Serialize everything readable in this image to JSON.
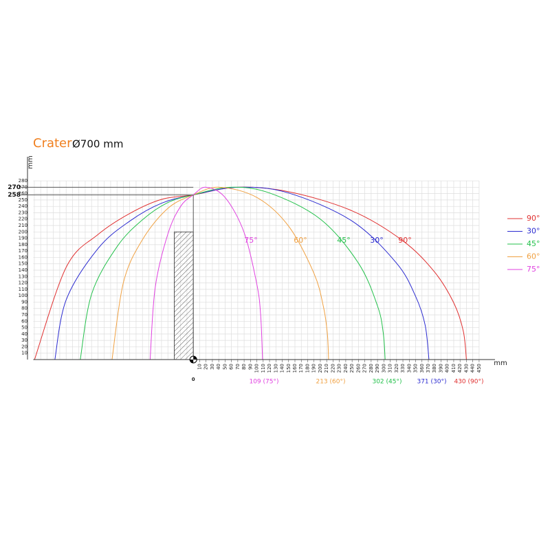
{
  "chart_data": {
    "type": "line",
    "title": "Crater",
    "subtitle": "Ø700 mm",
    "x_label": "mm",
    "y_label": "mm",
    "origin_label": "0",
    "xlim": [
      -252,
      475
    ],
    "ylim": [
      0,
      285
    ],
    "xticks": [
      10,
      20,
      30,
      40,
      50,
      60,
      70,
      80,
      90,
      100,
      110,
      120,
      130,
      140,
      150,
      160,
      170,
      180,
      190,
      200,
      210,
      220,
      230,
      240,
      250,
      260,
      270,
      280,
      290,
      300,
      310,
      320,
      330,
      340,
      350,
      360,
      370,
      380,
      390,
      400,
      410,
      420,
      430,
      440,
      450
    ],
    "yticks": [
      10,
      20,
      30,
      40,
      50,
      60,
      70,
      80,
      90,
      100,
      110,
      120,
      130,
      140,
      150,
      160,
      170,
      180,
      190,
      200,
      210,
      220,
      230,
      240,
      250,
      260,
      270,
      280
    ],
    "ref_lines": [
      270,
      258
    ],
    "obstacle": {
      "x": [
        -30,
        0
      ],
      "height": 200
    },
    "grid": true,
    "legend": "right",
    "series": [
      {
        "name": "90°",
        "color": "#e03030",
        "end_label": "430 (90°)",
        "x": [
          -250,
          -200,
          -150,
          -100,
          -50,
          0,
          68,
          150,
          250,
          330,
          380,
          410,
          425,
          430
        ],
        "values": [
          0,
          145,
          196,
          229,
          251,
          258,
          270,
          263,
          233,
          186,
          137,
          89,
          45,
          0
        ]
      },
      {
        "name": "30°",
        "color": "#2a2ad0",
        "end_label": "371 (30°)",
        "x": [
          -218,
          -200,
          -150,
          -100,
          -50,
          0,
          72,
          150,
          250,
          320,
          350,
          365,
          371
        ],
        "values": [
          0,
          94,
          174,
          217,
          245,
          258,
          270,
          261,
          217,
          151,
          99,
          54,
          0
        ]
      },
      {
        "name": "45°",
        "color": "#22c04a",
        "end_label": "302 (45°)",
        "x": [
          -178,
          -160,
          -120,
          -80,
          -40,
          0,
          58,
          120,
          200,
          260,
          290,
          299,
          302
        ],
        "values": [
          0,
          103,
          177,
          219,
          246,
          258,
          270,
          261,
          220,
          151,
          84,
          42,
          0
        ]
      },
      {
        "name": "60°",
        "color": "#f0a040",
        "end_label": "213 (60°)",
        "x": [
          -128,
          -110,
          -80,
          -40,
          0,
          41,
          100,
          150,
          190,
          205,
          211,
          213
        ],
        "values": [
          0,
          121,
          188,
          237,
          258,
          270,
          254,
          209,
          135,
          82,
          41,
          0
        ]
      },
      {
        "name": "75°",
        "color": "#e040e0",
        "end_label": "109 (75°)",
        "x": [
          -68,
          -60,
          -40,
          -20,
          0,
          20,
          50,
          80,
          100,
          106,
          109
        ],
        "values": [
          0,
          113,
          197,
          240,
          258,
          270,
          254,
          199,
          118,
          70,
          0
        ]
      }
    ]
  }
}
